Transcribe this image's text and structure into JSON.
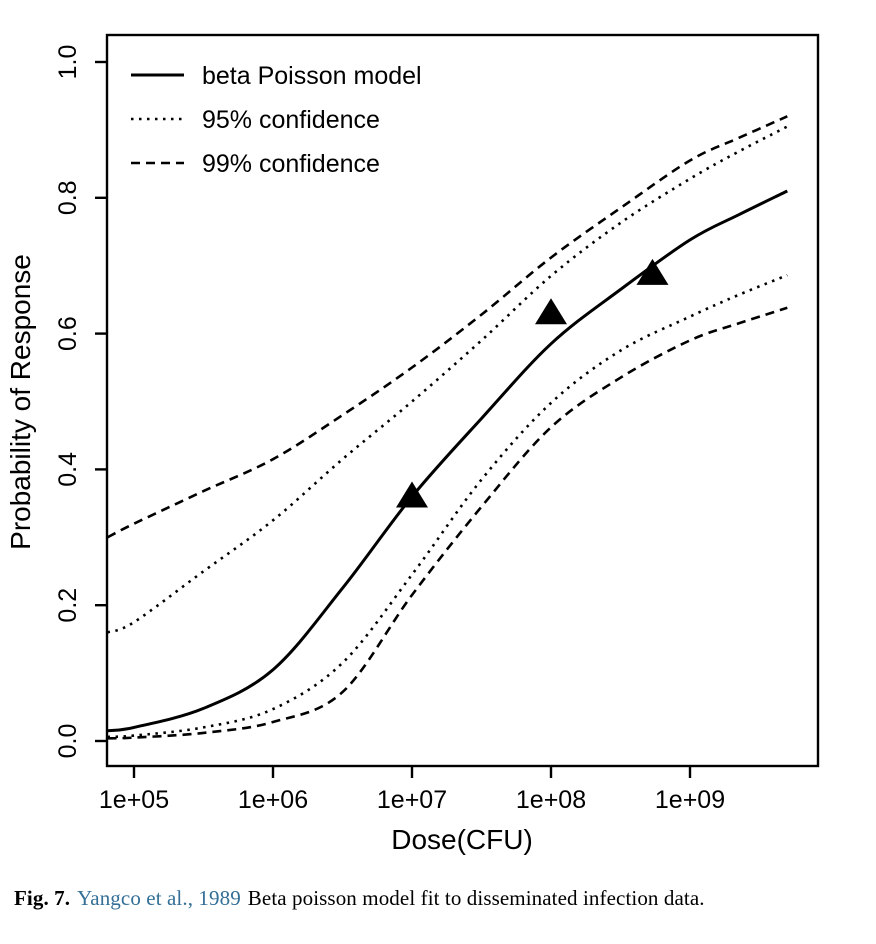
{
  "figure": {
    "caption_label": "Fig. 7.",
    "caption_link": "Yangco et al., 1989",
    "caption_text": "Beta poisson model fit to disseminated infection data.",
    "link_color": "#336f96"
  },
  "chart_data": {
    "type": "line",
    "title": "",
    "xlabel": "Dose(CFU)",
    "ylabel": "Probability of Response",
    "x_scale": "log10",
    "xlim_log10": [
      4.81,
      9.92
    ],
    "ylim": [
      -0.037,
      1.04
    ],
    "grid": "off",
    "legend_position": "top-left",
    "line_color": "#000000",
    "marker": "filled-triangle",
    "x_axis": {
      "ticks": [
        {
          "log10": 5,
          "label": "1e+05"
        },
        {
          "log10": 6,
          "label": "1e+06"
        },
        {
          "log10": 7,
          "label": "1e+07"
        },
        {
          "log10": 8,
          "label": "1e+08"
        },
        {
          "log10": 9,
          "label": "1e+09"
        }
      ]
    },
    "y_axis": {
      "ticks": [
        {
          "value": 0.0,
          "label": "0.0"
        },
        {
          "value": 0.2,
          "label": "0.2"
        },
        {
          "value": 0.4,
          "label": "0.4"
        },
        {
          "value": 0.6,
          "label": "0.6"
        },
        {
          "value": 0.8,
          "label": "0.8"
        },
        {
          "value": 1.0,
          "label": "1.0"
        }
      ]
    },
    "legend": [
      {
        "label": "beta Poisson model",
        "style": "solid"
      },
      {
        "label": "95% confidence",
        "style": "dotted"
      },
      {
        "label": "99% confidence",
        "style": "dashed"
      }
    ],
    "x_log10": [
      4.81,
      5.0,
      5.5,
      6.0,
      6.5,
      7.0,
      7.5,
      8.0,
      8.5,
      9.0,
      9.35,
      9.7
    ],
    "series": [
      {
        "name": "99% confidence upper",
        "style": "dashed",
        "y": [
          0.3,
          0.32,
          0.368,
          0.415,
          0.48,
          0.55,
          0.628,
          0.712,
          0.785,
          0.855,
          0.888,
          0.92
        ]
      },
      {
        "name": "95% confidence upper",
        "style": "dotted",
        "y": [
          0.16,
          0.175,
          0.25,
          0.325,
          0.415,
          0.5,
          0.59,
          0.685,
          0.763,
          0.828,
          0.868,
          0.905
        ]
      },
      {
        "name": "beta Poisson model",
        "style": "solid",
        "y": [
          0.015,
          0.02,
          0.048,
          0.105,
          0.225,
          0.36,
          0.475,
          0.585,
          0.665,
          0.738,
          0.775,
          0.81
        ]
      },
      {
        "name": "95% confidence lower",
        "style": "dotted",
        "y": [
          0.006,
          0.008,
          0.02,
          0.047,
          0.115,
          0.245,
          0.385,
          0.498,
          0.575,
          0.625,
          0.657,
          0.686
        ]
      },
      {
        "name": "99% confidence lower",
        "style": "dashed",
        "y": [
          0.004,
          0.005,
          0.012,
          0.028,
          0.072,
          0.215,
          0.345,
          0.462,
          0.535,
          0.59,
          0.615,
          0.638
        ]
      }
    ],
    "points": [
      {
        "dose_log10": 7.0,
        "dose_label": "1e+07",
        "probability": 0.36
      },
      {
        "dose_log10": 8.0,
        "dose_label": "1e+08",
        "probability": 0.63
      },
      {
        "dose_log10": 8.73,
        "dose_label": "5.4e+08",
        "probability": 0.688
      }
    ]
  }
}
